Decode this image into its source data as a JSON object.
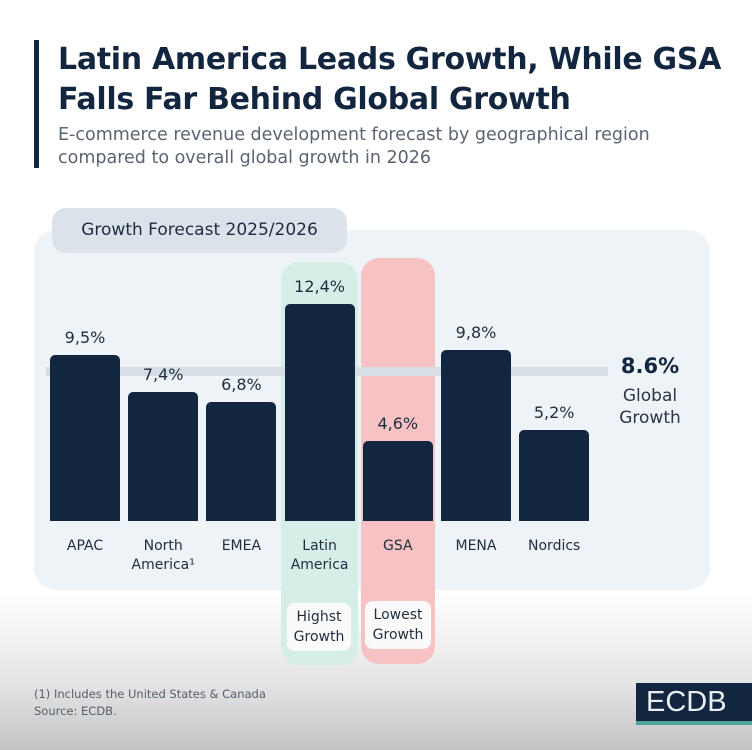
{
  "header": {
    "title": "Latin America Leads Growth, While GSA Falls Far Behind Global Growth",
    "subtitle": "E-commerce revenue development forecast by geographical region compared to overall global growth in 2026"
  },
  "chart_data": {
    "type": "bar",
    "title": "Growth Forecast 2025/2026",
    "categories": [
      "APAC",
      "North America¹",
      "EMEA",
      "Latin America",
      "GSA",
      "MENA",
      "Nordics"
    ],
    "values": [
      9.5,
      7.4,
      6.8,
      12.4,
      4.6,
      9.8,
      5.2
    ],
    "value_labels": [
      "9,5%",
      "7,4%",
      "6,8%",
      "12,4%",
      "4,6%",
      "9,8%",
      "5,2%"
    ],
    "unit": "%",
    "reference_line": {
      "value": 8.6,
      "value_label": "8.6%",
      "label": "Global Growth"
    },
    "highlights": [
      {
        "category": "Latin America",
        "label": "Highst Growth",
        "color": "#d5efe8"
      },
      {
        "category": "GSA",
        "label": "Lowest Growth",
        "color": "#f7c2c3"
      }
    ],
    "bar_color": "#13263f",
    "grid": false
  },
  "footer": {
    "note": "(1) Includes the United States & Canada",
    "source": "Source: ECDB.",
    "logo": "ECDB"
  }
}
